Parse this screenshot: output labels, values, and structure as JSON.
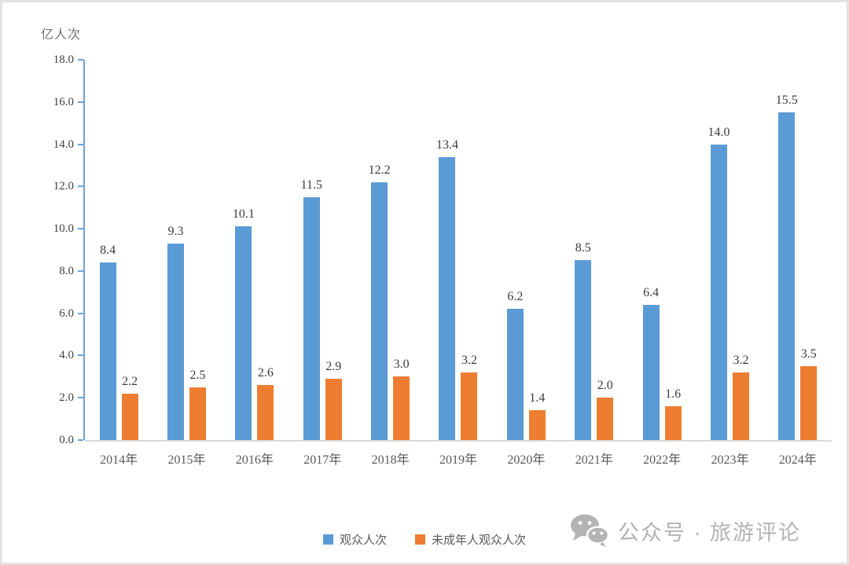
{
  "page": {
    "background": "#ffffff",
    "frame_border_color": "#e3e3e3"
  },
  "chart_data": {
    "type": "bar",
    "title": "",
    "ylabel": "亿人次",
    "xlabel": "",
    "categories": [
      "2014年",
      "2015年",
      "2016年",
      "2017年",
      "2018年",
      "2019年",
      "2020年",
      "2021年",
      "2022年",
      "2023年",
      "2024年"
    ],
    "series": [
      {
        "name": "观众人次",
        "color": "#5B9BD5",
        "values": [
          8.4,
          9.3,
          10.1,
          11.5,
          12.2,
          13.4,
          6.2,
          8.5,
          6.4,
          14.0,
          15.5
        ]
      },
      {
        "name": "未成年人观众人次",
        "color": "#ED7D31",
        "values": [
          2.2,
          2.5,
          2.6,
          2.9,
          3.0,
          3.2,
          1.4,
          2.0,
          1.6,
          3.2,
          3.5
        ]
      }
    ],
    "ylim": [
      0,
      18
    ],
    "ytick_step": 2,
    "ytick_labels": [
      "0.0",
      "2.0",
      "4.0",
      "6.0",
      "8.0",
      "10.0",
      "12.0",
      "14.0",
      "16.0",
      "18.0"
    ],
    "grid": false,
    "data_labels": true,
    "legend_position": "bottom",
    "axis_color": "#6ea0d8",
    "baseline_color": "#d9d9d9"
  },
  "watermark": {
    "icon": "wechat-icon",
    "text": "公众号 · 旅游评论",
    "color": "#b3b3b3"
  }
}
